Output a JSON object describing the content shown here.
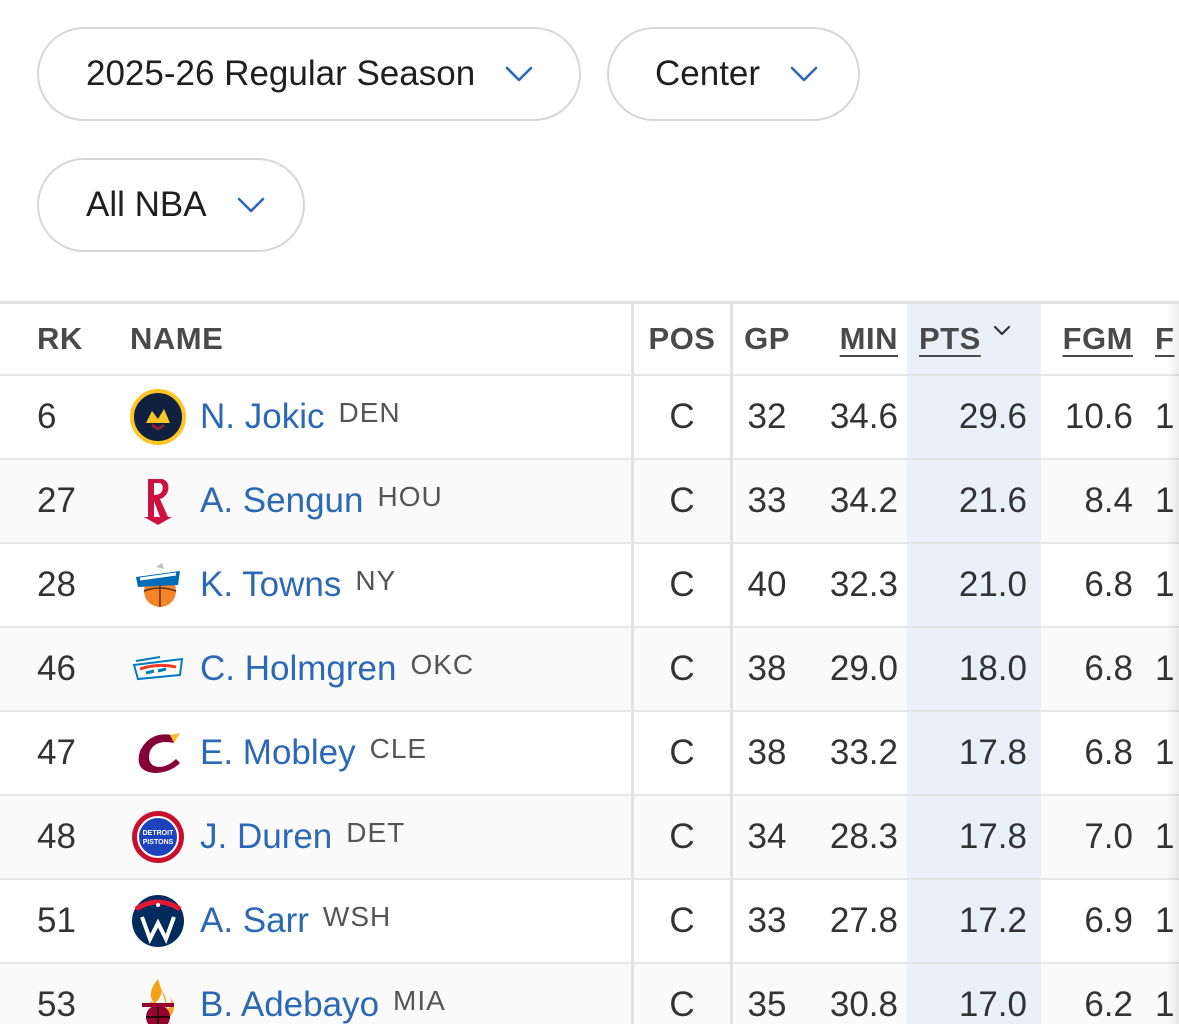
{
  "filters": {
    "season": "2025-26 Regular Season",
    "position": "Center",
    "league": "All NBA"
  },
  "table": {
    "headers": {
      "rk": "RK",
      "name": "NAME",
      "pos": "POS",
      "gp": "GP",
      "min": "MIN",
      "pts": "PTS",
      "fgm": "FGM",
      "next": "F"
    },
    "sorted_by": "PTS",
    "rows": [
      {
        "rk": "6",
        "name": "N. Jokic",
        "team": "DEN",
        "logo": "nuggets-logo-icon",
        "pos": "C",
        "gp": "32",
        "min": "34.6",
        "pts": "29.6",
        "fgm": "10.6",
        "next": "1"
      },
      {
        "rk": "27",
        "name": "A. Sengun",
        "team": "HOU",
        "logo": "rockets-logo-icon",
        "pos": "C",
        "gp": "33",
        "min": "34.2",
        "pts": "21.6",
        "fgm": "8.4",
        "next": "1"
      },
      {
        "rk": "28",
        "name": "K. Towns",
        "team": "NY",
        "logo": "knicks-logo-icon",
        "pos": "C",
        "gp": "40",
        "min": "32.3",
        "pts": "21.0",
        "fgm": "6.8",
        "next": "1"
      },
      {
        "rk": "46",
        "name": "C. Holmgren",
        "team": "OKC",
        "logo": "thunder-logo-icon",
        "pos": "C",
        "gp": "38",
        "min": "29.0",
        "pts": "18.0",
        "fgm": "6.8",
        "next": "1"
      },
      {
        "rk": "47",
        "name": "E. Mobley",
        "team": "CLE",
        "logo": "cavaliers-logo-icon",
        "pos": "C",
        "gp": "38",
        "min": "33.2",
        "pts": "17.8",
        "fgm": "6.8",
        "next": "1"
      },
      {
        "rk": "48",
        "name": "J. Duren",
        "team": "DET",
        "logo": "pistons-logo-icon",
        "pos": "C",
        "gp": "34",
        "min": "28.3",
        "pts": "17.8",
        "fgm": "7.0",
        "next": "1"
      },
      {
        "rk": "51",
        "name": "A. Sarr",
        "team": "WSH",
        "logo": "wizards-logo-icon",
        "pos": "C",
        "gp": "33",
        "min": "27.8",
        "pts": "17.2",
        "fgm": "6.9",
        "next": "1"
      },
      {
        "rk": "53",
        "name": "B. Adebayo",
        "team": "MIA",
        "logo": "heat-logo-icon",
        "pos": "C",
        "gp": "35",
        "min": "30.8",
        "pts": "17.0",
        "fgm": "6.2",
        "next": "1"
      }
    ]
  },
  "colors": {
    "link": "#2b68b5",
    "sorted_column_bg": "#e9f0f8",
    "chevron": "#2b68b5"
  },
  "logo_text": {
    "pistons": [
      "DETROIT",
      "PISTONS"
    ]
  }
}
